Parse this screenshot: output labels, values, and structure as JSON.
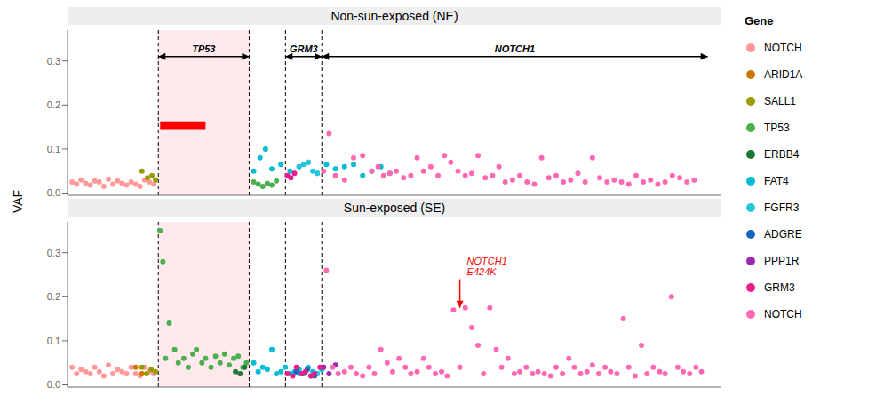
{
  "chart_data": [
    {
      "type": "scatter",
      "title": "Non-sun-exposed (NE)",
      "ylabel": "VAF",
      "xlim": [
        0,
        7.2
      ],
      "ylim": [
        -0.005,
        0.37
      ],
      "yticks": [
        {
          "value": 0.0,
          "label": "0.0"
        },
        0.1,
        0.2,
        0.3
      ],
      "tick_labels": "y",
      "grid": false,
      "vlines": [
        1.0,
        2.0,
        2.4,
        2.8
      ],
      "shade": {
        "x": 1.0,
        "width": 1.0,
        "color": "#FFB6C1"
      },
      "rects": [
        {
          "x": 1.02,
          "width": 0.5,
          "y": 0.145,
          "height": 0.018,
          "color": "red"
        }
      ],
      "annotations": [
        {
          "text": "TP53",
          "x1": 1.0,
          "x2": 2.0,
          "y1": 0.31,
          "y2": 0.31,
          "arrow": "<->"
        },
        {
          "text": "GRM3",
          "x1": 2.4,
          "x2": 2.8,
          "y1": 0.31,
          "y2": 0.31,
          "arrow": "<->"
        },
        {
          "text": "NOTCH1",
          "x1": 2.8,
          "x2": 7.05,
          "y1": 0.31,
          "y2": 0.31,
          "arrow": "<->"
        }
      ],
      "series": [
        {
          "name": "NOTCH",
          "color": "#FF9999",
          "x": [
            0.05,
            0.1,
            0.15,
            0.2,
            0.25,
            0.3,
            0.35,
            0.4,
            0.45,
            0.5,
            0.55,
            0.6,
            0.65,
            0.7,
            0.75,
            0.8,
            0.85,
            0.9,
            0.95
          ],
          "values": [
            0.025,
            0.02,
            0.03,
            0.022,
            0.018,
            0.028,
            0.025,
            0.015,
            0.032,
            0.02,
            0.028,
            0.022,
            0.018,
            0.025,
            0.02,
            0.015,
            0.03,
            0.025,
            0.02
          ]
        },
        {
          "name": "SALL1",
          "color": "#9B9B00",
          "x": [
            0.82,
            0.88,
            0.93,
            0.97
          ],
          "values": [
            0.05,
            0.035,
            0.04,
            0.03
          ]
        },
        {
          "name": "TP53",
          "color": "#4CAF50",
          "x": [
            2.05,
            2.1,
            2.15,
            2.2,
            2.25,
            2.3
          ],
          "values": [
            0.025,
            0.02,
            0.015,
            0.022,
            0.018,
            0.028
          ]
        },
        {
          "name": "FAT4",
          "color": "#00BCD4",
          "x": [
            2.05,
            2.12,
            2.18,
            2.25,
            2.35,
            2.45,
            2.55,
            2.65,
            2.75,
            2.85,
            2.95,
            3.05,
            3.15,
            3.25,
            3.35,
            3.45,
            3.55
          ],
          "values": [
            0.05,
            0.08,
            0.1,
            0.055,
            0.065,
            0.05,
            0.06,
            0.07,
            0.045,
            0.065,
            0.055,
            0.06,
            0.065,
            0.04,
            0.05,
            0.06,
            0.045
          ]
        },
        {
          "name": "FGFR3",
          "color": "#26C6DA",
          "x": [
            2.55,
            2.6,
            2.65,
            2.7,
            2.75
          ],
          "values": [
            0.06,
            0.065,
            0.07,
            0.05,
            0.045
          ]
        },
        {
          "name": "GRM3",
          "color": "#E91E8C",
          "x": [
            2.42,
            2.46,
            2.5
          ],
          "values": [
            0.04,
            0.035,
            0.045
          ]
        },
        {
          "name": "NOTCH",
          "color": "#FF69B4",
          "x": [
            2.82,
            2.88,
            2.95,
            3.05,
            3.15,
            3.25,
            3.35,
            3.42,
            3.48,
            3.55,
            3.62,
            3.7,
            3.78,
            3.85,
            3.92,
            4.0,
            4.08,
            4.15,
            4.22,
            4.3,
            4.38,
            4.45,
            4.52,
            4.6,
            4.68,
            4.75,
            4.82,
            4.9,
            4.98,
            5.06,
            5.14,
            5.22,
            5.3,
            5.38,
            5.46,
            5.54,
            5.62,
            5.7,
            5.78,
            5.86,
            5.94,
            6.02,
            6.1,
            6.18,
            6.26,
            6.34,
            6.42,
            6.5,
            6.58,
            6.66,
            6.74,
            6.82,
            6.9
          ],
          "values": [
            0.05,
            0.135,
            0.04,
            0.03,
            0.08,
            0.085,
            0.05,
            0.06,
            0.04,
            0.045,
            0.05,
            0.035,
            0.04,
            0.08,
            0.05,
            0.06,
            0.04,
            0.085,
            0.07,
            0.05,
            0.04,
            0.045,
            0.085,
            0.035,
            0.04,
            0.06,
            0.025,
            0.03,
            0.04,
            0.025,
            0.02,
            0.08,
            0.035,
            0.04,
            0.025,
            0.03,
            0.045,
            0.025,
            0.08,
            0.035,
            0.025,
            0.03,
            0.025,
            0.02,
            0.04,
            0.025,
            0.03,
            0.02,
            0.025,
            0.04,
            0.035,
            0.025,
            0.03
          ]
        }
      ]
    },
    {
      "type": "scatter",
      "title": "Sun-exposed (SE)",
      "legend_title": "Gene",
      "xlim": [
        0,
        7.2
      ],
      "ylim": [
        -0.005,
        0.37
      ],
      "yticks": [
        {
          "value": 0.0,
          "label": "0.0"
        },
        0.1,
        0.2,
        0.3
      ],
      "tick_labels": "y",
      "grid": false,
      "vlines": [
        1.0,
        2.0,
        2.4,
        2.8
      ],
      "shade": {
        "x": 1.0,
        "width": 1.0,
        "color": "#FFB6C1"
      },
      "annotations": [
        {
          "text": "NOTCH1\nE424K",
          "x1": 4.32,
          "x2": 4.32,
          "y1": 0.24,
          "y2": 0.175,
          "arrow": "->",
          "color": "red"
        }
      ],
      "series": [
        {
          "name": "NOTCH",
          "color": "#FF9999",
          "x": [
            0.05,
            0.1,
            0.15,
            0.2,
            0.25,
            0.3,
            0.35,
            0.4,
            0.45,
            0.5,
            0.55,
            0.6,
            0.65,
            0.7,
            0.75,
            0.8,
            0.85,
            0.9,
            0.95
          ],
          "values": [
            0.04,
            0.025,
            0.035,
            0.03,
            0.025,
            0.04,
            0.03,
            0.02,
            0.045,
            0.025,
            0.035,
            0.03,
            0.025,
            0.04,
            0.025,
            0.02,
            0.04,
            0.03,
            0.025
          ]
        },
        {
          "name": "ARID1A",
          "color": "#CC7700",
          "x": [
            0.75,
            0.82
          ],
          "values": [
            0.04,
            0.025
          ]
        },
        {
          "name": "SALL1",
          "color": "#9B9B00",
          "x": [
            0.82,
            0.87,
            0.92,
            0.97
          ],
          "values": [
            0.04,
            0.025,
            0.035,
            0.03
          ]
        },
        {
          "name": "TP53",
          "color": "#4CAF50",
          "x": [
            1.02,
            1.05,
            1.08,
            1.12,
            1.18,
            1.22,
            1.28,
            1.33,
            1.38,
            1.42,
            1.48,
            1.52,
            1.58,
            1.63,
            1.68,
            1.73,
            1.78,
            1.83,
            1.88,
            1.93,
            1.97
          ],
          "values": [
            0.35,
            0.28,
            0.06,
            0.14,
            0.08,
            0.05,
            0.06,
            0.04,
            0.07,
            0.08,
            0.05,
            0.06,
            0.04,
            0.065,
            0.05,
            0.07,
            0.045,
            0.06,
            0.065,
            0.04,
            0.05
          ]
        },
        {
          "name": "ERBB4",
          "color": "#1B7837",
          "x": [
            1.85,
            1.9,
            1.95
          ],
          "values": [
            0.03,
            0.025,
            0.04
          ]
        },
        {
          "name": "FAT4",
          "color": "#00BCD4",
          "x": [
            2.05,
            2.1,
            2.15,
            2.2,
            2.25,
            2.3,
            2.35,
            2.4,
            2.45,
            2.5,
            2.55,
            2.6,
            2.65,
            2.7,
            2.75,
            2.8
          ],
          "values": [
            0.05,
            0.03,
            0.04,
            0.035,
            0.08,
            0.025,
            0.03,
            0.04,
            0.025,
            0.03,
            0.035,
            0.025,
            0.04,
            0.03,
            0.025,
            0.035
          ]
        },
        {
          "name": "FGFR3",
          "color": "#26C6DA",
          "x": [
            2.55,
            2.62,
            2.68,
            2.75
          ],
          "values": [
            0.025,
            0.03,
            0.02,
            0.025
          ]
        },
        {
          "name": "ADGRE",
          "color": "#1565C0",
          "x": [
            2.52,
            2.58,
            2.64,
            2.72
          ],
          "values": [
            0.03,
            0.025,
            0.035,
            0.02
          ]
        },
        {
          "name": "PPP1R",
          "color": "#9C27B0",
          "x": [
            2.82,
            2.88,
            2.95
          ],
          "values": [
            0.04,
            0.025,
            0.045
          ]
        },
        {
          "name": "GRM3",
          "color": "#E91E8C",
          "x": [
            2.42,
            2.48,
            2.52,
            2.58,
            2.62,
            2.68,
            2.72,
            2.78
          ],
          "values": [
            0.025,
            0.02,
            0.04,
            0.025,
            0.03,
            0.02,
            0.025,
            0.04
          ]
        },
        {
          "name": "NOTCH",
          "color": "#FF69B4",
          "x": [
            2.85,
            2.92,
            2.98,
            3.05,
            3.12,
            3.18,
            3.25,
            3.32,
            3.38,
            3.45,
            3.52,
            3.58,
            3.65,
            3.72,
            3.78,
            3.85,
            3.92,
            3.98,
            4.05,
            4.12,
            4.18,
            4.25,
            4.32,
            4.38,
            4.45,
            4.52,
            4.58,
            4.65,
            4.72,
            4.78,
            4.85,
            4.92,
            4.98,
            5.05,
            5.12,
            5.18,
            5.25,
            5.32,
            5.38,
            5.45,
            5.52,
            5.58,
            5.65,
            5.72,
            5.78,
            5.85,
            5.92,
            5.98,
            6.05,
            6.12,
            6.18,
            6.25,
            6.32,
            6.38,
            6.45,
            6.52,
            6.58,
            6.65,
            6.72,
            6.78,
            6.85,
            6.92,
            6.98
          ],
          "values": [
            0.26,
            0.04,
            0.025,
            0.03,
            0.04,
            0.025,
            0.02,
            0.04,
            0.025,
            0.08,
            0.05,
            0.03,
            0.06,
            0.04,
            0.025,
            0.03,
            0.06,
            0.04,
            0.025,
            0.03,
            0.02,
            0.17,
            0.04,
            0.175,
            0.13,
            0.09,
            0.025,
            0.175,
            0.08,
            0.04,
            0.06,
            0.025,
            0.03,
            0.04,
            0.025,
            0.03,
            0.025,
            0.02,
            0.04,
            0.025,
            0.06,
            0.04,
            0.025,
            0.03,
            0.045,
            0.025,
            0.04,
            0.03,
            0.025,
            0.15,
            0.04,
            0.02,
            0.09,
            0.025,
            0.04,
            0.03,
            0.025,
            0.2,
            0.04,
            0.03,
            0.025,
            0.04,
            0.03
          ]
        }
      ]
    }
  ]
}
